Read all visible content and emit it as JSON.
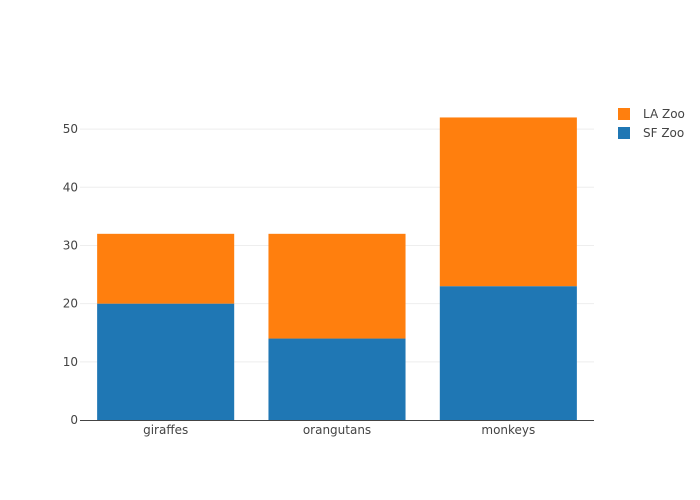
{
  "chart_data": {
    "type": "bar",
    "barmode": "stack",
    "categories": [
      "giraffes",
      "orangutans",
      "monkeys"
    ],
    "series": [
      {
        "name": "SF Zoo",
        "values": [
          20,
          14,
          23
        ],
        "color": "#1f77b4"
      },
      {
        "name": "LA Zoo",
        "values": [
          12,
          18,
          29
        ],
        "color": "#ff7f0e"
      }
    ],
    "ylim": [
      0,
      55
    ],
    "yticks": [
      0,
      10,
      20,
      30,
      40,
      50
    ],
    "grid": true,
    "legend_position": "top-right",
    "title": "",
    "xlabel": "",
    "ylabel": ""
  }
}
